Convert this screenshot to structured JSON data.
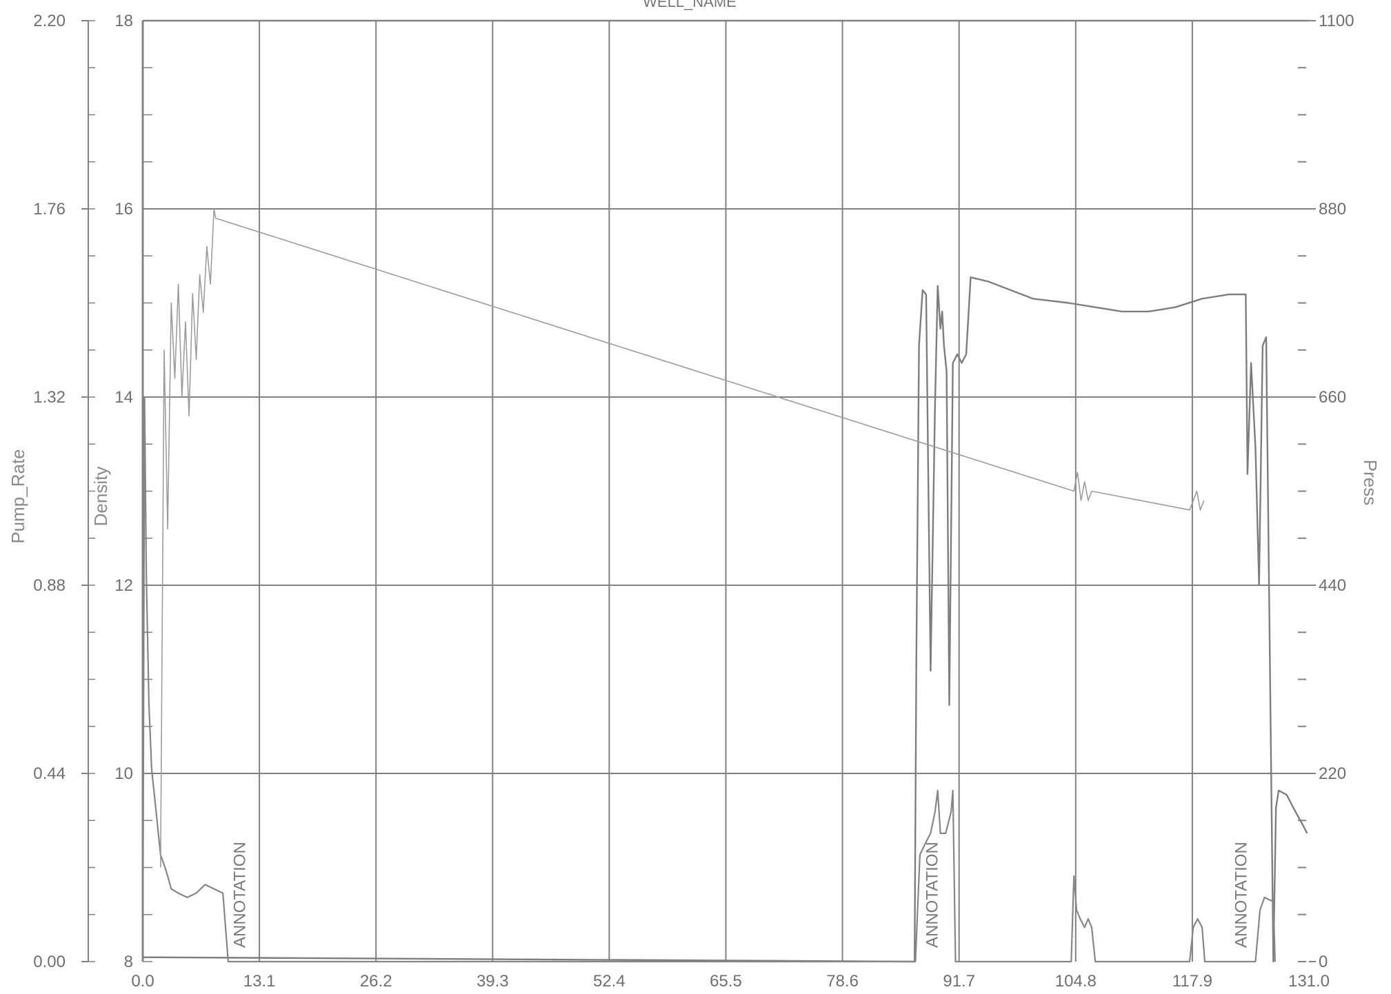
{
  "chart_data": {
    "type": "line",
    "title": "WELL_NAME",
    "xlabel": "",
    "x_ticks": [
      "0.0",
      "13.1",
      "26.2",
      "39.3",
      "52.4",
      "65.5",
      "78.6",
      "91.7",
      "104.8",
      "117.9",
      "131.0"
    ],
    "xlim": [
      0,
      131
    ],
    "grid": true,
    "axes": {
      "pump_rate": {
        "label": "Pump_Rate",
        "ylim": [
          0,
          2.2
        ],
        "ticks": [
          "0.00",
          "0.44",
          "0.88",
          "1.32",
          "1.76",
          "2.20"
        ]
      },
      "density": {
        "label": "Density",
        "ylim": [
          8,
          18
        ],
        "ticks": [
          "8",
          "10",
          "12",
          "14",
          "16",
          "18"
        ]
      },
      "press": {
        "label": "Press",
        "ylim": [
          0,
          1100
        ],
        "ticks": [
          "0",
          "220",
          "440",
          "660",
          "880",
          "1100"
        ]
      }
    },
    "annotations": [
      {
        "text": "ANNOTATION",
        "x": 11.5
      },
      {
        "text": "ANNOTATION",
        "x": 89.3
      },
      {
        "text": "ANNOTATION",
        "x": 124.0
      }
    ],
    "series": [
      {
        "axis": "press",
        "x": [
          0.0,
          0.2,
          0.5,
          1.0,
          1.5,
          2.0,
          2.3,
          86.7,
          86.9,
          87.2,
          87.6,
          88.0,
          88.5,
          89.0,
          89.3,
          89.6,
          89.8,
          90.0,
          90.3,
          90.6,
          91.0,
          91.5,
          92.0,
          92.5,
          93.0,
          95.0,
          100.0,
          104.0,
          107.0,
          110.0,
          113.0,
          116.0,
          119.0,
          122.0,
          123.9,
          124.1,
          124.5,
          125.0,
          125.4,
          125.8,
          126.2,
          127.0,
          127.3,
          127.6,
          128.5,
          129.5,
          130.3,
          130.8
        ],
        "y": [
          5,
          5,
          5,
          5,
          5,
          5,
          5,
          0,
          350,
          720,
          785,
          780,
          340,
          650,
          790,
          740,
          760,
          720,
          690,
          300,
          700,
          710,
          700,
          710,
          800,
          795,
          775,
          770,
          765,
          760,
          760,
          765,
          775,
          780,
          780,
          570,
          700,
          600,
          440,
          720,
          730,
          0,
          180,
          200,
          195,
          175,
          160,
          150
        ]
      },
      {
        "axis": "pump_rate",
        "x": [
          0.0,
          0.2,
          0.4,
          0.7,
          1.0,
          1.5,
          2.0,
          2.5,
          2.8,
          3.2,
          4.0,
          5.0,
          6.0,
          7.0,
          8.0,
          9.0,
          9.6,
          86.8,
          87.3,
          88.0,
          88.5,
          89.0,
          89.3,
          89.6,
          90.2,
          90.8,
          91.0,
          91.3,
          104.3,
          104.6,
          104.9,
          105.3,
          105.8,
          106.2,
          106.6,
          107.0,
          117.6,
          118.0,
          118.5,
          119.0,
          119.3,
          125.0,
          125.5,
          126.0,
          127.0,
          127.2
        ],
        "y": [
          0.0,
          1.32,
          0.9,
          0.6,
          0.45,
          0.35,
          0.25,
          0.22,
          0.2,
          0.17,
          0.16,
          0.15,
          0.16,
          0.18,
          0.17,
          0.16,
          0.0,
          0.0,
          0.25,
          0.28,
          0.3,
          0.35,
          0.4,
          0.3,
          0.3,
          0.35,
          0.4,
          0.0,
          0.0,
          0.2,
          0.12,
          0.1,
          0.08,
          0.1,
          0.08,
          0.0,
          0.0,
          0.08,
          0.1,
          0.08,
          0.0,
          0.0,
          0.12,
          0.15,
          0.14,
          0.0
        ]
      },
      {
        "axis": "density",
        "x": [
          2.0,
          2.4,
          2.8,
          3.2,
          3.6,
          4.0,
          4.4,
          4.8,
          5.2,
          5.6,
          6.0,
          6.4,
          6.8,
          7.2,
          7.6,
          8.0,
          8.2,
          104.6,
          105.0,
          105.4,
          105.8,
          106.2,
          106.6,
          117.6,
          118.0,
          118.4,
          118.8,
          119.2
        ],
        "y": [
          9.0,
          14.5,
          12.6,
          15.0,
          14.2,
          15.2,
          14.0,
          14.8,
          13.8,
          15.1,
          14.4,
          15.3,
          14.9,
          15.6,
          15.2,
          16.0,
          15.9,
          13.0,
          13.2,
          12.9,
          13.1,
          12.9,
          13.0,
          12.8,
          12.9,
          13.0,
          12.8,
          12.9
        ]
      }
    ]
  }
}
